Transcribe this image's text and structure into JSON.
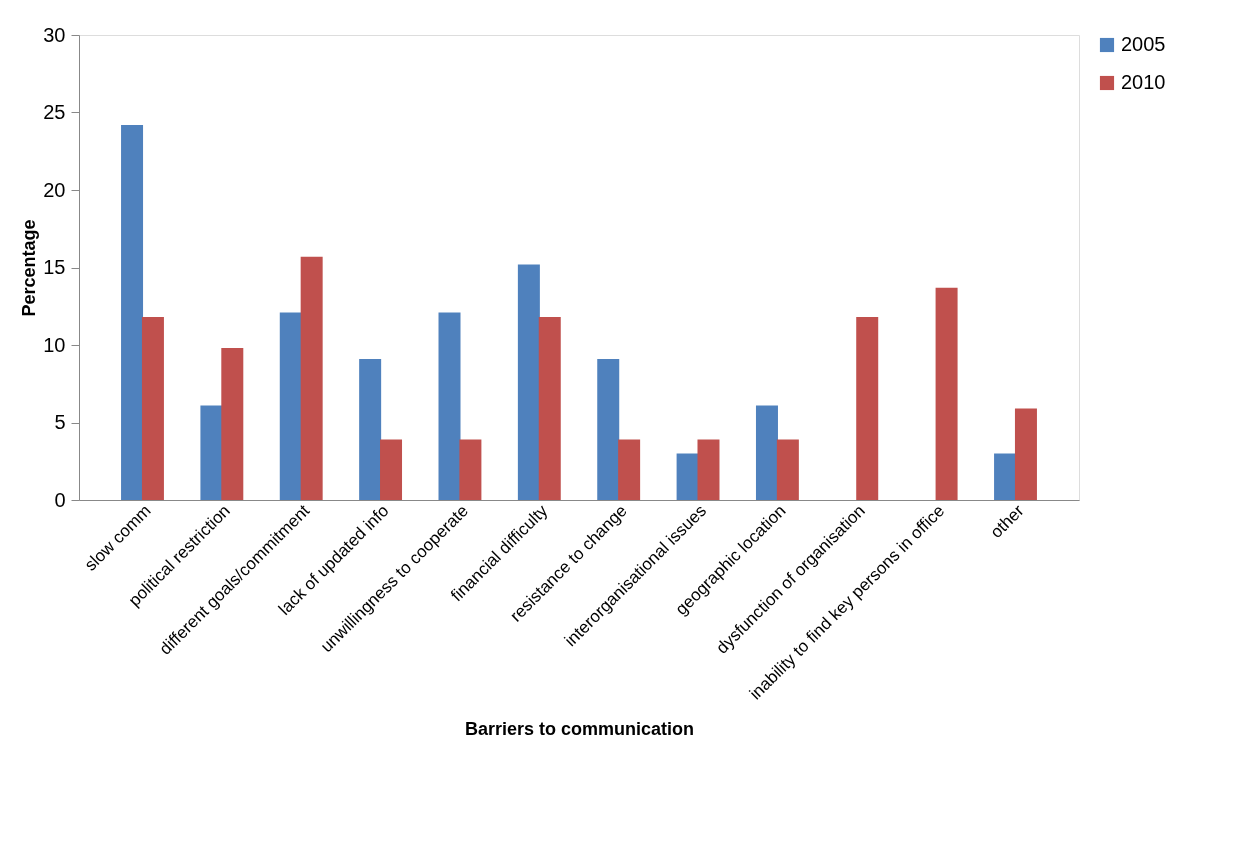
{
  "chart_data": {
    "type": "bar",
    "xlabel": "Barriers to communication",
    "ylabel": "Percentage",
    "categories": [
      "slow comm",
      "political restriction",
      "different goals/commitment",
      "lack of updated info",
      "unwillingness to cooperate",
      "financial difficulty",
      "resistance to change",
      "interorganisational issues",
      "geographic location",
      "dysfunction of organisation",
      "inability to find key persons in office",
      "other"
    ],
    "series": [
      {
        "name": "2005",
        "color": "#4f81bd",
        "values": [
          24.2,
          6.1,
          12.1,
          9.1,
          12.1,
          15.2,
          9.1,
          3.0,
          6.1,
          0,
          0,
          3.0
        ]
      },
      {
        "name": "2010",
        "color": "#c0504d",
        "values": [
          11.8,
          9.8,
          15.7,
          3.9,
          3.9,
          11.8,
          3.9,
          3.9,
          3.9,
          11.8,
          13.7,
          5.9
        ]
      }
    ],
    "ylim": [
      0,
      30
    ],
    "yticks": [
      0,
      5,
      10,
      15,
      20,
      25,
      30
    ],
    "grid": false,
    "legend": "right"
  }
}
